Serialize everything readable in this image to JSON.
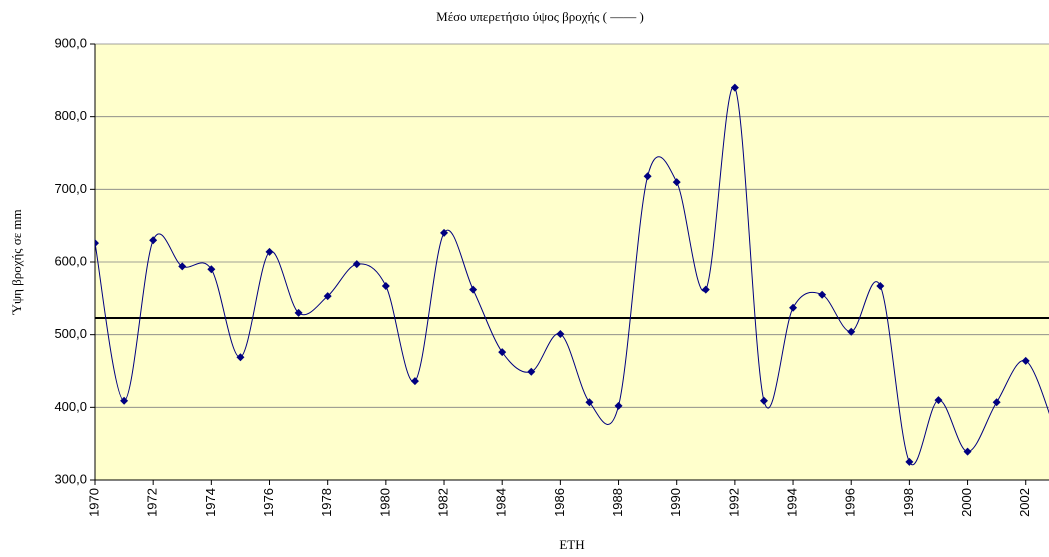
{
  "chart_data": {
    "type": "line",
    "title": "Μέσο υπερετήσιο ύψος βροχής ( —— )",
    "x_label": "ΕΤΗ",
    "y_label": "Ύψη βροχής σε mm",
    "x": [
      1970,
      1971,
      1972,
      1973,
      1974,
      1975,
      1976,
      1977,
      1978,
      1979,
      1980,
      1981,
      1982,
      1983,
      1984,
      1985,
      1986,
      1987,
      1988,
      1989,
      1990,
      1991,
      1992,
      1993,
      1994,
      1995,
      1996,
      1997,
      1998,
      1999,
      2000,
      2001,
      2002,
      2003
    ],
    "series": [
      {
        "name": "Ύψος βροχής",
        "color": "#000080",
        "values": [
          626,
          409,
          630,
          594,
          590,
          469,
          614,
          530,
          553,
          597,
          567,
          436,
          640,
          562,
          476,
          449,
          501,
          407,
          402,
          718,
          710,
          562,
          840,
          409,
          537,
          555,
          504,
          567,
          325,
          410,
          339,
          407,
          464,
          370
        ]
      }
    ],
    "mean": 523,
    "mean_color": "#000000",
    "xlim": [
      1970,
      2002.8
    ],
    "xticks": [
      1970,
      1972,
      1974,
      1976,
      1978,
      1980,
      1982,
      1984,
      1986,
      1988,
      1990,
      1992,
      1994,
      1996,
      1998,
      2000,
      2002
    ],
    "ylim": [
      300,
      900
    ],
    "yticks": [
      {
        "value": 300,
        "label": "300,0"
      },
      {
        "value": 400,
        "label": "400,0"
      },
      {
        "value": 500,
        "label": "500,0"
      },
      {
        "value": 600,
        "label": "600,0"
      },
      {
        "value": 700,
        "label": "700,0"
      },
      {
        "value": 800,
        "label": "800,0"
      },
      {
        "value": 900,
        "label": "900,0"
      }
    ],
    "grid": true,
    "background": "#ffffcc"
  }
}
